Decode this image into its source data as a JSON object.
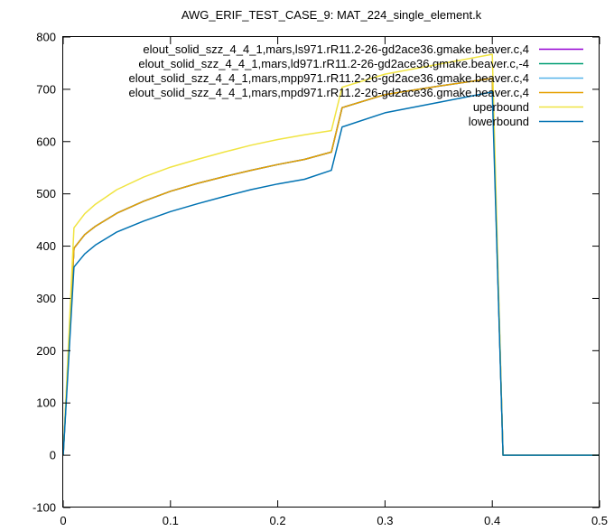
{
  "chart_data": {
    "type": "line",
    "title": "AWG_ERIF_TEST_CASE_9: MAT_224_single_element.k",
    "xlabel": "",
    "ylabel": "",
    "xlim": [
      0,
      0.5
    ],
    "ylim": [
      -100,
      800
    ],
    "xticks": [
      "0",
      "0.1",
      "0.2",
      "0.3",
      "0.4",
      "0.5"
    ],
    "yticks": [
      "-100",
      "0",
      "100",
      "200",
      "300",
      "400",
      "500",
      "600",
      "700",
      "800"
    ],
    "grid": false,
    "legend_position": "top-right",
    "series": [
      {
        "name": "elout_solid_szz_4_4_1,mars,ls971.rR11.2-26-gd2ace36.gmake.beaver.c,4",
        "color": "#9400d3",
        "x": [
          0,
          0.01,
          0.02,
          0.03,
          0.05,
          0.075,
          0.1,
          0.125,
          0.15,
          0.175,
          0.2,
          0.225,
          0.25,
          0.26,
          0.3,
          0.35,
          0.4,
          0.41,
          0.45,
          0.5
        ],
        "y": [
          0,
          396,
          422,
          438,
          463,
          486,
          505,
          520,
          533,
          545,
          556,
          566,
          580,
          665,
          690,
          706,
          721,
          0,
          0,
          0
        ]
      },
      {
        "name": "elout_solid_szz_4_4_1,mars,ld971.rR11.2-26-gd2ace36.gmake.beaver.c,-4",
        "color": "#009e73",
        "x": [
          0,
          0.01,
          0.02,
          0.03,
          0.05,
          0.075,
          0.1,
          0.125,
          0.15,
          0.175,
          0.2,
          0.225,
          0.25,
          0.26,
          0.3,
          0.35,
          0.4,
          0.41,
          0.45,
          0.5
        ],
        "y": [
          0,
          396,
          422,
          438,
          463,
          486,
          505,
          520,
          533,
          545,
          556,
          566,
          580,
          665,
          690,
          706,
          721,
          0,
          0,
          0
        ]
      },
      {
        "name": "elout_solid_szz_4_4_1,mars,mpp971.rR11.2-26-gd2ace36.gmake.beaver.c,4",
        "color": "#56b4e9",
        "x": [
          0,
          0.01,
          0.02,
          0.03,
          0.05,
          0.075,
          0.1,
          0.125,
          0.15,
          0.175,
          0.2,
          0.225,
          0.25,
          0.26,
          0.3,
          0.35,
          0.4,
          0.41,
          0.45,
          0.5
        ],
        "y": [
          0,
          396,
          422,
          438,
          463,
          486,
          505,
          520,
          533,
          545,
          556,
          566,
          580,
          665,
          690,
          706,
          721,
          0,
          0,
          0
        ]
      },
      {
        "name": "elout_solid_szz_4_4_1,mars,mpd971.rR11.2-26-gd2ace36.gmake.beaver.c,4",
        "color": "#e69f00",
        "x": [
          0,
          0.01,
          0.02,
          0.03,
          0.05,
          0.075,
          0.1,
          0.125,
          0.15,
          0.175,
          0.2,
          0.225,
          0.25,
          0.26,
          0.3,
          0.35,
          0.4,
          0.41,
          0.45,
          0.5
        ],
        "y": [
          0,
          396,
          422,
          438,
          463,
          486,
          505,
          520,
          533,
          545,
          556,
          566,
          580,
          665,
          690,
          706,
          721,
          0,
          0,
          0
        ]
      },
      {
        "name": "uperbound",
        "color": "#f0e442",
        "x": [
          0,
          0.01,
          0.02,
          0.03,
          0.05,
          0.075,
          0.1,
          0.125,
          0.15,
          0.175,
          0.2,
          0.225,
          0.25,
          0.26,
          0.3,
          0.35,
          0.4,
          0.41,
          0.45,
          0.5
        ],
        "y": [
          0,
          435,
          462,
          480,
          508,
          532,
          551,
          566,
          580,
          593,
          604,
          613,
          621,
          704,
          729,
          748,
          767,
          0,
          0,
          0
        ]
      },
      {
        "name": "lowerbound",
        "color": "#0072b2",
        "x": [
          0,
          0.01,
          0.02,
          0.03,
          0.05,
          0.075,
          0.1,
          0.125,
          0.15,
          0.175,
          0.2,
          0.225,
          0.25,
          0.26,
          0.3,
          0.35,
          0.4,
          0.41,
          0.45,
          0.5
        ],
        "y": [
          0,
          360,
          385,
          402,
          427,
          448,
          466,
          481,
          495,
          508,
          519,
          528,
          545,
          628,
          655,
          675,
          695,
          0,
          0,
          0
        ]
      }
    ]
  }
}
